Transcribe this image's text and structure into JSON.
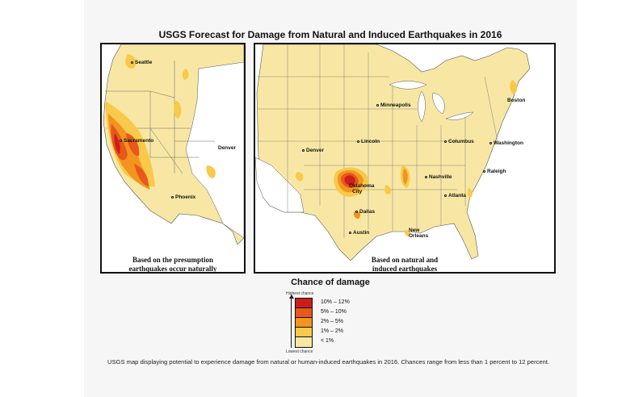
{
  "title": "USGS Forecast for Damage from Natural and Induced Earthquakes in 2016",
  "panels": {
    "left": {
      "caption_line1": "Based on the presumption",
      "caption_line2": "earthquakes occur naturally",
      "cities": {
        "seattle": "Seattle",
        "sacramento": "Sacramento",
        "denver": "Denver",
        "phoenix": "Phoenix"
      }
    },
    "right": {
      "caption_line1": "Based on natural and",
      "caption_line2": "induced earthquakes",
      "cities": {
        "minneapolis": "Minneapolis",
        "boston": "Boston",
        "denver": "Denver",
        "lincoln": "Lincoln",
        "columbus": "Columbus",
        "washington": "Washington",
        "oklahoma_city_1": "Oklahoma",
        "oklahoma_city_2": "City",
        "nashville": "Nashville",
        "raleigh": "Raleigh",
        "atlanta": "Atlanta",
        "dallas": "Dallas",
        "austin": "Austin",
        "new_orleans_1": "New",
        "new_orleans_2": "Orleans"
      }
    }
  },
  "legend": {
    "title": "Chance of damage",
    "highest": "Highest chance",
    "lowest": "Lowest chance",
    "items": [
      {
        "label": "10% – 12%",
        "color": "#cc1d1d"
      },
      {
        "label": "5% – 10%",
        "color": "#e8571b"
      },
      {
        "label": "2% – 5%",
        "color": "#f39420"
      },
      {
        "label": "1% – 2%",
        "color": "#f8c94a"
      },
      {
        "label": "< 1%",
        "color": "#f8e7a4"
      }
    ]
  },
  "footer": "USGS map displaying potential to experience damage from natural or human-induced earthquakes in 2016. Chances range from less than 1 percent to 12 percent.",
  "colors": {
    "base": "#f8e7a4",
    "low": "#f8c94a",
    "mid": "#f39420",
    "high": "#e8571b",
    "highest": "#cc1d1d",
    "water": "#ffffff"
  }
}
